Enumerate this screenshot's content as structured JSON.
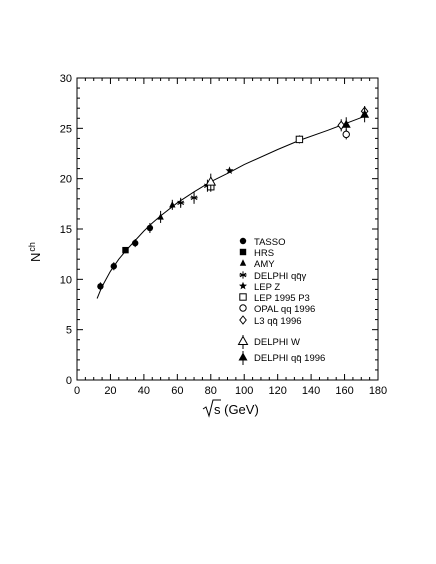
{
  "chart_data": {
    "type": "scatter",
    "ylabel_main": "N",
    "ylabel_sub": "ch",
    "xlabel_main": "s (GeV)",
    "xlim": [
      0,
      180
    ],
    "ylim": [
      0,
      30
    ],
    "xticks": [
      0,
      20,
      40,
      60,
      80,
      100,
      120,
      140,
      160,
      180
    ],
    "yticks": [
      0,
      5,
      10,
      15,
      20,
      25,
      30
    ],
    "grid": false,
    "legend_position": "center-right",
    "fit_curve": {
      "x": [
        12,
        14,
        16,
        20,
        25,
        30,
        35,
        40,
        45,
        50,
        60,
        70,
        80,
        91,
        100,
        120,
        133,
        150,
        161,
        172
      ],
      "y": [
        8.1,
        8.9,
        9.6,
        10.8,
        12.0,
        13.0,
        13.9,
        14.8,
        15.6,
        16.3,
        17.6,
        18.7,
        19.7,
        20.6,
        21.4,
        22.9,
        23.8,
        24.8,
        25.5,
        26.2
      ]
    },
    "series": [
      {
        "name": "TASSO",
        "marker": "filled-circle",
        "x": [
          14,
          22,
          34.8,
          43.6
        ],
        "y": [
          9.3,
          11.3,
          13.6,
          15.1
        ],
        "err": [
          0.4,
          0.4,
          0.4,
          0.5
        ]
      },
      {
        "name": "HRS",
        "marker": "filled-square",
        "x": [
          29
        ],
        "y": [
          12.9
        ],
        "err": [
          0.3
        ]
      },
      {
        "name": "AMY",
        "marker": "filled-triangle",
        "x": [
          50,
          57
        ],
        "y": [
          16.2,
          17.4
        ],
        "err": [
          0.6,
          0.5
        ]
      },
      {
        "name": "DELPHI qq̄γ",
        "marker": "asterisk",
        "x": [
          62,
          70,
          78
        ],
        "y": [
          17.6,
          18.1,
          19.3
        ],
        "err": [
          0.5,
          0.6,
          0.6
        ]
      },
      {
        "name": "LEP Z",
        "marker": "star",
        "x": [
          91.2
        ],
        "y": [
          20.8
        ],
        "err": [
          0.1
        ]
      },
      {
        "name": "LEP 1995 P3",
        "marker": "open-square",
        "x": [
          80,
          133
        ],
        "y": [
          19.2,
          23.9
        ],
        "err": [
          0.5,
          0.4
        ]
      },
      {
        "name": "OPAL qq 1996",
        "marker": "open-circle",
        "x": [
          161
        ],
        "y": [
          24.4
        ],
        "err": [
          0.5
        ]
      },
      {
        "name": "L3 qq̄ 1996",
        "marker": "open-diamond",
        "x": [
          158,
          172
        ],
        "y": [
          25.3,
          26.7
        ],
        "err": [
          0.6,
          0.5
        ]
      },
      {
        "name": "DELPHI W",
        "marker": "open-triangle",
        "x": [
          80
        ],
        "y": [
          19.7
        ],
        "err": [
          0.8
        ]
      },
      {
        "name": "DELPHI qq̄ 1996",
        "marker": "filled-triangle-large",
        "x": [
          161,
          172
        ],
        "y": [
          25.4,
          26.4
        ],
        "err": [
          0.7,
          0.8
        ]
      }
    ]
  }
}
